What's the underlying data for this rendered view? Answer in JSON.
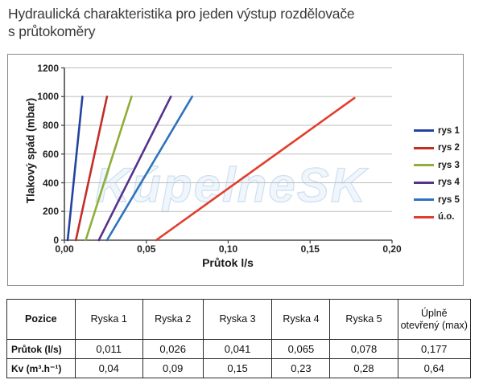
{
  "page": {
    "title_lines": [
      "Hydraulická charakteristika pro jeden výstup rozdělovače",
      "s průtokoměry"
    ]
  },
  "chart_data": {
    "type": "line",
    "title": "",
    "xlabel": "Průtok l/s",
    "ylabel": "Tlakový spád (mbar)",
    "xlim": [
      0,
      0.2
    ],
    "ylim": [
      0,
      1200
    ],
    "x_tick_labels": [
      "0,00",
      "0,05",
      "0,10",
      "0,15",
      "0,20"
    ],
    "x_tick_values": [
      0,
      0.05,
      0.1,
      0.15,
      0.2
    ],
    "y_tick_labels": [
      "0",
      "200",
      "400",
      "600",
      "800",
      "1000",
      "1200"
    ],
    "y_tick_values": [
      0,
      200,
      400,
      600,
      800,
      1000,
      1200
    ],
    "grid": "horizontal",
    "legend_position": "right",
    "watermark": "KúpelneSK",
    "series": [
      {
        "name": "rys 1",
        "color": "#2443a0",
        "points": [
          [
            0.002,
            0
          ],
          [
            0.011,
            1000
          ]
        ]
      },
      {
        "name": "rys 2",
        "color": "#c32d28",
        "points": [
          [
            0.007,
            0
          ],
          [
            0.026,
            1000
          ]
        ]
      },
      {
        "name": "rys 3",
        "color": "#8fae3a",
        "points": [
          [
            0.013,
            0
          ],
          [
            0.041,
            1000
          ]
        ]
      },
      {
        "name": "rys 4",
        "color": "#55338d",
        "points": [
          [
            0.021,
            0
          ],
          [
            0.065,
            1000
          ]
        ]
      },
      {
        "name": "rys 5",
        "color": "#2e74bb",
        "points": [
          [
            0.026,
            0
          ],
          [
            0.078,
            1000
          ]
        ]
      },
      {
        "name": "ú.o.",
        "color": "#e23e2d",
        "points": [
          [
            0.056,
            0
          ],
          [
            0.177,
            990
          ]
        ]
      }
    ]
  },
  "table": {
    "header": [
      "Pozice",
      "Ryska 1",
      "Ryska 2",
      "Ryska 3",
      "Ryska 4",
      "Ryska 5",
      "Úplně otevřený (max)"
    ],
    "rows": [
      {
        "label": "Průtok (l/s)",
        "values": [
          "0,011",
          "0,026",
          "0,041",
          "0,065",
          "0,078",
          "0,177"
        ]
      },
      {
        "label": "Kv (m³.h⁻¹)",
        "values": [
          "0,04",
          "0,09",
          "0,15",
          "0,23",
          "0,28",
          "0,64"
        ]
      }
    ]
  }
}
